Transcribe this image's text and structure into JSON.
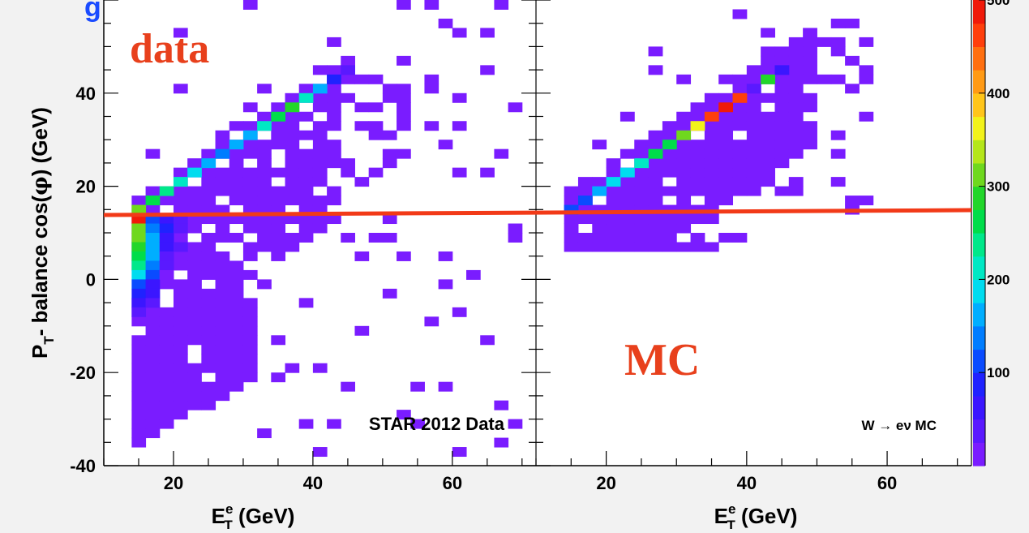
{
  "chart_data": {
    "type": "heatmap",
    "panels": [
      {
        "name": "data",
        "tag": "data",
        "label": "STAR 2012 Data",
        "xlabel": "E",
        "xlabel_sup": "e",
        "xlabel_sub": "T",
        "xlabel_unit": " (GeV)",
        "xlim": [
          10,
          72
        ],
        "xticks": [
          20,
          40,
          60
        ]
      },
      {
        "name": "MC",
        "tag": "MC",
        "label": "W → eν  MC",
        "xlabel": "E",
        "xlabel_sup": "e",
        "xlabel_sub": "T",
        "xlabel_unit": " (GeV)",
        "xlim": [
          10,
          72
        ],
        "xticks": [
          20,
          40,
          60
        ]
      }
    ],
    "ylabel_parts": [
      "P",
      "T",
      "- balance cos(",
      "φ",
      ") (GeV)"
    ],
    "ylim": [
      -40,
      60
    ],
    "yticks": [
      -40,
      -20,
      0,
      20,
      40
    ],
    "cut_line_y": 14,
    "colorbar": {
      "zlim": [
        0,
        500
      ],
      "ticks": [
        100,
        200,
        300,
        400,
        500
      ],
      "colors": [
        "#7a1cff",
        "#5a19ff",
        "#3b16ff",
        "#1f22ff",
        "#0a4bff",
        "#007dff",
        "#00aeff",
        "#00dcef",
        "#00e8c4",
        "#00e88a",
        "#00dd4a",
        "#22d62a",
        "#6fd81e",
        "#b5e61a",
        "#f2f21a",
        "#ffc51a",
        "#ff9a15",
        "#ff6f10",
        "#ff3f0c",
        "#f01a0a"
      ]
    },
    "data_ridge": [
      [
        15,
        15,
        300
      ],
      [
        17,
        17,
        270
      ],
      [
        19,
        19,
        230
      ],
      [
        21,
        21,
        200
      ],
      [
        23,
        23,
        180
      ],
      [
        25,
        25,
        160
      ],
      [
        27,
        27,
        140
      ],
      [
        29,
        29,
        170
      ],
      [
        31,
        31,
        150
      ],
      [
        33,
        33,
        200
      ],
      [
        35,
        35,
        260
      ],
      [
        37,
        37,
        280
      ],
      [
        39,
        39,
        210
      ],
      [
        41,
        41,
        160
      ],
      [
        43,
        43,
        80
      ],
      [
        45,
        45,
        30
      ]
    ],
    "data_lowpeak": [
      [
        15,
        13,
        500
      ],
      [
        15,
        11,
        320
      ],
      [
        15,
        9,
        300
      ],
      [
        15,
        7,
        280
      ],
      [
        15,
        5,
        260
      ],
      [
        15,
        3,
        240
      ],
      [
        15,
        1,
        180
      ],
      [
        15,
        -1,
        110
      ],
      [
        15,
        -3,
        80
      ],
      [
        15,
        -5,
        50
      ],
      [
        15,
        -7,
        30
      ],
      [
        17,
        13,
        120
      ],
      [
        17,
        11,
        140
      ],
      [
        17,
        9,
        150
      ],
      [
        17,
        7,
        160
      ],
      [
        17,
        5,
        150
      ],
      [
        17,
        3,
        130
      ],
      [
        17,
        1,
        100
      ],
      [
        17,
        -1,
        70
      ],
      [
        17,
        -3,
        50
      ],
      [
        17,
        -5,
        30
      ],
      [
        19,
        13,
        70
      ],
      [
        19,
        11,
        80
      ],
      [
        19,
        9,
        60
      ],
      [
        19,
        7,
        50
      ],
      [
        19,
        5,
        40
      ],
      [
        19,
        3,
        30
      ],
      [
        19,
        1,
        20
      ],
      [
        21,
        13,
        30
      ],
      [
        21,
        11,
        30
      ],
      [
        21,
        7,
        25
      ]
    ],
    "mc_ridge": [
      [
        15,
        15,
        120
      ],
      [
        17,
        17,
        110
      ],
      [
        19,
        19,
        150
      ],
      [
        21,
        21,
        180
      ],
      [
        23,
        23,
        190
      ],
      [
        25,
        25,
        220
      ],
      [
        27,
        27,
        260
      ],
      [
        29,
        29,
        270
      ],
      [
        31,
        31,
        320
      ],
      [
        33,
        33,
        370
      ],
      [
        35,
        35,
        470
      ],
      [
        37,
        37,
        490
      ],
      [
        39,
        39,
        460
      ],
      [
        41,
        41,
        40
      ],
      [
        43,
        43,
        280
      ],
      [
        45,
        45,
        60
      ]
    ]
  }
}
